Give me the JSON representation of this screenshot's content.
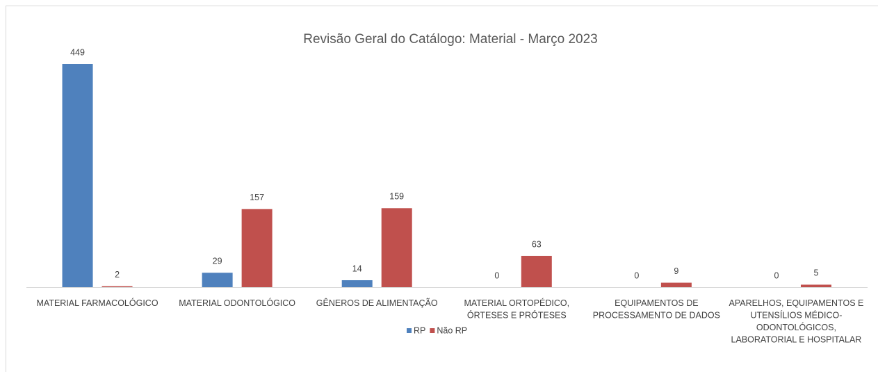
{
  "chart_data": {
    "type": "bar",
    "title": "Revisão Geral do Catálogo: Material - Março 2023",
    "categories": [
      "MATERIAL FARMACOLÓGICO",
      "MATERIAL ODONTOLÓGICO",
      "GÊNEROS DE ALIMENTAÇÃO",
      "MATERIAL ORTOPÉDICO, ÓRTESES E PRÓTESES",
      "EQUIPAMENTOS DE PROCESSAMENTO DE DADOS",
      "APARELHOS, EQUIPAMENTOS E UTENSÍLIOS MÉDICO-ODONTOLÓGICOS, LABORATORIAL E HOSPITALAR"
    ],
    "series": [
      {
        "name": "RP",
        "color": "#4f81bd",
        "values": [
          449,
          29,
          14,
          0,
          0,
          0
        ]
      },
      {
        "name": "Não RP",
        "color": "#c0504d",
        "values": [
          2,
          157,
          159,
          63,
          9,
          5
        ]
      }
    ],
    "legend": "bottom"
  }
}
